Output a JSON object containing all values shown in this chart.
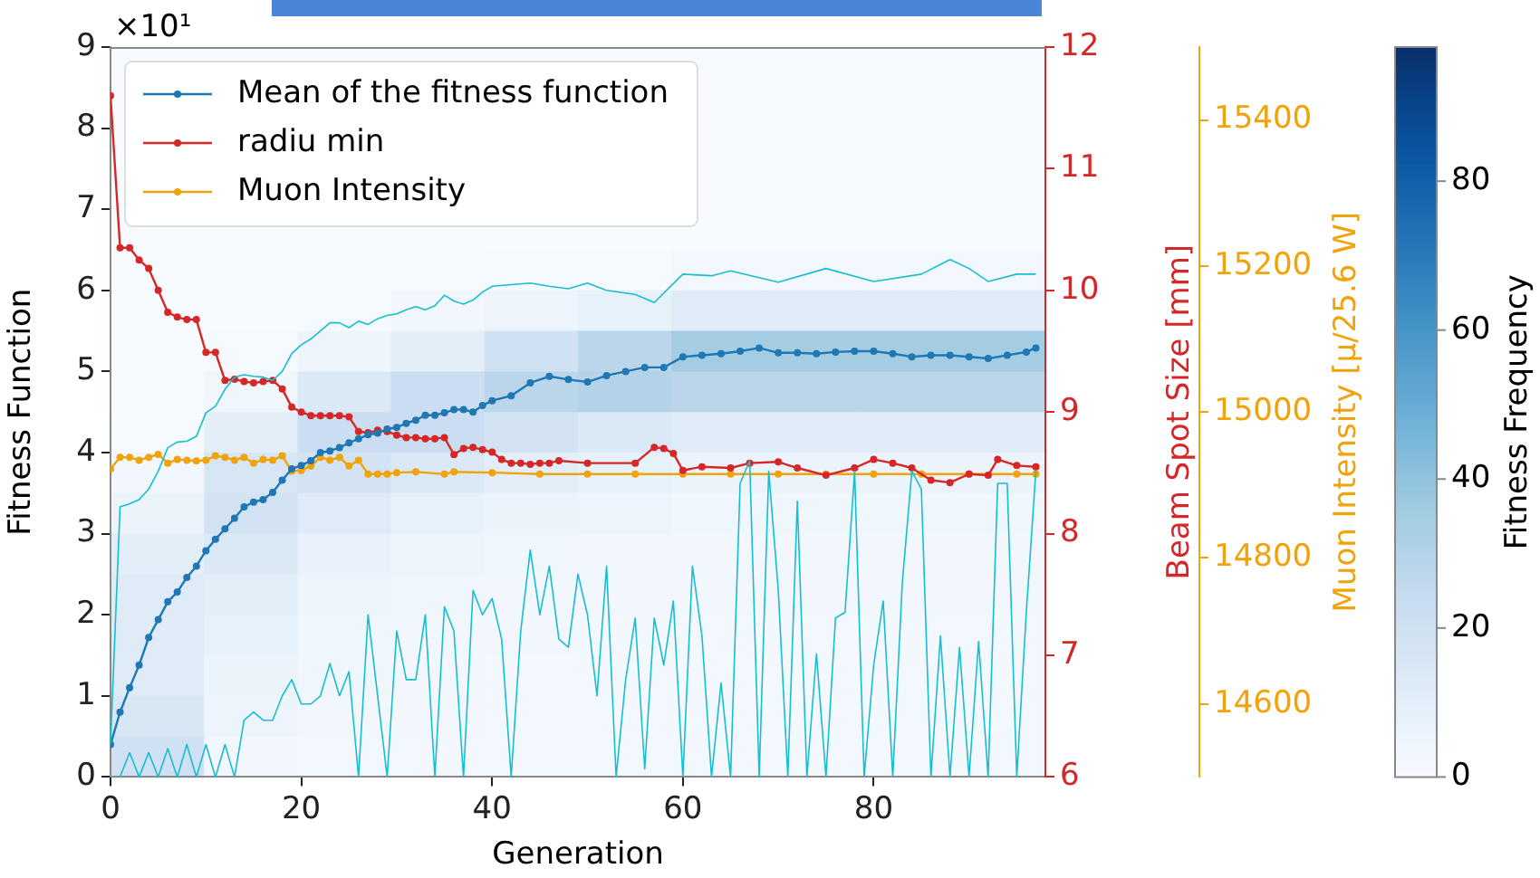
{
  "chart_data": [
    {
      "type": "heatmap",
      "clabel": "Fitness Frequency",
      "clim": [
        0,
        98
      ],
      "cticks": [
        0,
        20,
        40,
        60,
        80
      ],
      "categories": [
        null,
        null,
        null,
        null,
        null,
        null,
        null,
        null,
        null,
        null
      ],
      "y_categories": [
        null,
        null,
        null,
        null,
        null,
        null,
        null,
        null,
        null,
        null,
        null,
        null,
        null,
        null,
        null,
        null,
        null,
        null
      ],
      "cells": [
        [
          0,
          0,
          0,
          0,
          0,
          0,
          0,
          0,
          0,
          0
        ],
        [
          0,
          0,
          0,
          0,
          0,
          0,
          0,
          0,
          0,
          0
        ],
        [
          0,
          0,
          0,
          0,
          0,
          0,
          0,
          0,
          0,
          0
        ],
        [
          0,
          0,
          0,
          0,
          0,
          0,
          0,
          0,
          0,
          0
        ],
        [
          0,
          0,
          0,
          0,
          0,
          0,
          0,
          0,
          0,
          0
        ],
        [
          0,
          0,
          0,
          0,
          1,
          1,
          2,
          2,
          2,
          2
        ],
        [
          0,
          0,
          1,
          3,
          5,
          8,
          12,
          12,
          12,
          12
        ],
        [
          0,
          1,
          5,
          10,
          20,
          28,
          35,
          35,
          35,
          35
        ],
        [
          0,
          4,
          14,
          22,
          28,
          30,
          28,
          28,
          28,
          28
        ],
        [
          1,
          10,
          22,
          22,
          18,
          14,
          12,
          12,
          12,
          12
        ],
        [
          3,
          16,
          18,
          14,
          10,
          8,
          6,
          6,
          6,
          6
        ],
        [
          6,
          18,
          12,
          8,
          6,
          5,
          4,
          4,
          4,
          4
        ],
        [
          10,
          14,
          7,
          5,
          4,
          3,
          3,
          3,
          3,
          3
        ],
        [
          12,
          10,
          5,
          4,
          3,
          3,
          3,
          3,
          3,
          3
        ],
        [
          12,
          8,
          4,
          3,
          3,
          2,
          2,
          2,
          2,
          2
        ],
        [
          12,
          6,
          4,
          3,
          2,
          2,
          2,
          2,
          2,
          2
        ],
        [
          15,
          5,
          3,
          3,
          2,
          2,
          2,
          2,
          2,
          2
        ],
        [
          20,
          3,
          2,
          2,
          2,
          2,
          2,
          2,
          2,
          2
        ]
      ]
    },
    {
      "type": "line",
      "xlabel": "Generation",
      "ylabel": "Fitness Function",
      "y2label": "Beam Spot Size [mm]",
      "y3label": "Muon Intensity [μ/25.6 W]",
      "annotations": [
        "×10¹"
      ],
      "xlim": [
        0,
        98
      ],
      "xticks": [
        0,
        20,
        40,
        60,
        80
      ],
      "ylim": [
        0,
        9
      ],
      "yticks": [
        0,
        1,
        2,
        3,
        4,
        5,
        6,
        7,
        8,
        9
      ],
      "y2lim": [
        6,
        12
      ],
      "y2ticks": [
        6,
        7,
        8,
        9,
        10,
        11,
        12
      ],
      "y3lim": [
        14500,
        15500
      ],
      "y3ticks": [
        14600,
        14800,
        15000,
        15200,
        15400
      ],
      "grid": false,
      "legend": "top left",
      "marker": "circle",
      "series": [
        {
          "color": "#17becf",
          "marker": "none",
          "x": [
            0,
            1,
            2,
            3,
            4,
            5,
            6,
            7,
            8,
            9,
            10,
            11,
            12,
            13,
            14,
            15,
            16,
            17,
            18,
            19,
            20,
            21,
            22,
            23,
            24,
            25,
            26,
            27,
            28,
            29,
            30,
            31,
            32,
            33,
            34,
            35,
            36,
            37,
            38,
            39,
            40,
            42,
            44,
            46,
            48,
            50,
            52,
            55,
            57,
            60,
            63,
            65,
            70,
            75,
            80,
            85,
            88,
            90,
            92,
            95,
            97
          ],
          "values": [
            0.4,
            3.33,
            3.37,
            3.42,
            3.55,
            3.77,
            4.06,
            4.13,
            4.14,
            4.2,
            4.49,
            4.57,
            4.78,
            4.93,
            4.96,
            4.94,
            4.93,
            4.89,
            5,
            5.22,
            5.33,
            5.4,
            5.5,
            5.6,
            5.6,
            5.54,
            5.62,
            5.58,
            5.65,
            5.69,
            5.71,
            5.76,
            5.8,
            5.76,
            5.81,
            5.94,
            5.87,
            5.83,
            5.88,
            5.98,
            6.05,
            6.07,
            6.09,
            6.05,
            6.02,
            6.09,
            6,
            5.95,
            5.85,
            6.2,
            6.18,
            6.24,
            6.1,
            6.27,
            6.11,
            6.2,
            6.38,
            6.27,
            6.11,
            6.2,
            6.2
          ]
        },
        {
          "color": "#17becf",
          "marker": "none",
          "x": [
            1,
            2,
            3,
            4,
            5,
            6,
            7,
            8,
            9,
            10,
            11,
            12,
            13,
            14,
            15,
            16,
            17,
            18,
            19,
            20,
            21,
            22,
            23,
            24,
            25,
            26,
            27,
            28,
            29,
            30,
            31,
            32,
            33,
            34,
            35,
            36,
            37,
            38,
            39,
            40,
            41,
            42,
            43,
            44,
            45,
            46,
            47,
            48,
            49,
            50,
            51,
            52,
            53,
            54,
            55,
            56,
            57,
            58,
            59,
            60,
            61,
            62,
            63,
            64,
            65,
            66,
            67,
            68,
            69,
            70,
            71,
            72,
            73,
            74,
            75,
            76,
            77,
            78,
            79,
            80,
            81,
            82,
            83,
            84,
            85,
            86,
            87,
            88,
            89,
            90,
            91,
            92,
            93,
            94,
            95,
            96,
            97
          ],
          "values": [
            0,
            0.3,
            0,
            0.3,
            0,
            0.35,
            0,
            0.4,
            0,
            0.4,
            0,
            0.4,
            0,
            0.7,
            0.8,
            0.7,
            0.7,
            1,
            1.2,
            0.9,
            0.9,
            1,
            1.4,
            1,
            1.3,
            0,
            2,
            1,
            0,
            1.8,
            1.2,
            1.2,
            2,
            0,
            2.1,
            1.8,
            0,
            2.3,
            2,
            2.2,
            1.7,
            0,
            1.8,
            2.8,
            2,
            2.6,
            1.7,
            1.6,
            2.5,
            2,
            1,
            2.6,
            0,
            1.2,
            1.96,
            0.1,
            1.96,
            1.38,
            2.17,
            0,
            2.6,
            1.74,
            0,
            1.16,
            0,
            3.62,
            3.9,
            0,
            3.77,
            2.3,
            0,
            3.4,
            0,
            1.52,
            0,
            1.96,
            2.03,
            3.77,
            0,
            1.38,
            2.17,
            0,
            2.39,
            3.77,
            3.55,
            0,
            1.74,
            0,
            1.6,
            0,
            1.67,
            0,
            3.62,
            3.62,
            0,
            2.03,
            3.77
          ]
        },
        {
          "name": "Mean of the fitness function",
          "color": "#1f77b4",
          "x": [
            0,
            1,
            2,
            3,
            4,
            5,
            6,
            7,
            8,
            9,
            10,
            11,
            12,
            13,
            14,
            15,
            16,
            17,
            18,
            19,
            20,
            21,
            22,
            23,
            24,
            25,
            26,
            27,
            28,
            29,
            30,
            31,
            32,
            33,
            34,
            35,
            36,
            37,
            38,
            39,
            40,
            42,
            44,
            46,
            48,
            50,
            52,
            54,
            56,
            58,
            60,
            62,
            64,
            66,
            68,
            70,
            72,
            74,
            76,
            78,
            80,
            82,
            84,
            86,
            88,
            90,
            92,
            94,
            96,
            97
          ],
          "values": [
            0.4,
            0.8,
            1.1,
            1.38,
            1.72,
            1.94,
            2.16,
            2.28,
            2.46,
            2.6,
            2.79,
            2.93,
            3.06,
            3.19,
            3.33,
            3.39,
            3.42,
            3.51,
            3.66,
            3.8,
            3.84,
            3.9,
            4,
            4.02,
            4.06,
            4.12,
            4.17,
            4.22,
            4.24,
            4.29,
            4.31,
            4.36,
            4.4,
            4.46,
            4.46,
            4.49,
            4.53,
            4.53,
            4.5,
            4.58,
            4.64,
            4.7,
            4.86,
            4.94,
            4.9,
            4.87,
            4.95,
            5,
            5.05,
            5.05,
            5.18,
            5.2,
            5.22,
            5.25,
            5.29,
            5.23,
            5.23,
            5.22,
            5.24,
            5.25,
            5.25,
            5.22,
            5.18,
            5.2,
            5.2,
            5.18,
            5.16,
            5.2,
            5.24,
            5.29
          ]
        },
        {
          "name": "radiu min",
          "color": "#d62728",
          "axis": "y2",
          "x": [
            0,
            1,
            2,
            3,
            4,
            5,
            6,
            7,
            8,
            9,
            10,
            11,
            12,
            13,
            14,
            15,
            16,
            17,
            18,
            19,
            20,
            21,
            22,
            23,
            24,
            25,
            26,
            27,
            28,
            29,
            30,
            31,
            32,
            33,
            34,
            35,
            36,
            37,
            38,
            39,
            40,
            41,
            42,
            43,
            44,
            45,
            46,
            47,
            50,
            55,
            57,
            58,
            59,
            60,
            62,
            65,
            67,
            70,
            72,
            75,
            78,
            80,
            82,
            84,
            86,
            88,
            90,
            92,
            93,
            95,
            97
          ],
          "values": [
            11.6,
            10.35,
            10.35,
            10.25,
            10.18,
            10,
            9.82,
            9.78,
            9.76,
            9.76,
            9.49,
            9.49,
            9.26,
            9.27,
            9.25,
            9.24,
            9.25,
            9.26,
            9.19,
            9.04,
            9,
            8.97,
            8.97,
            8.97,
            8.97,
            8.96,
            8.84,
            8.83,
            8.85,
            8.84,
            8.81,
            8.79,
            8.79,
            8.78,
            8.78,
            8.79,
            8.65,
            8.7,
            8.71,
            8.69,
            8.67,
            8.61,
            8.58,
            8.58,
            8.57,
            8.58,
            8.58,
            8.6,
            8.58,
            8.58,
            8.71,
            8.7,
            8.66,
            8.52,
            8.55,
            8.54,
            8.58,
            8.59,
            8.54,
            8.48,
            8.54,
            8.61,
            8.58,
            8.54,
            8.44,
            8.42,
            8.49,
            8.48,
            8.61,
            8.56,
            8.55
          ]
        },
        {
          "name": "Muon Intensity",
          "color": "#f0a30a",
          "axis": "y3",
          "x": [
            0,
            1,
            2,
            3,
            4,
            5,
            6,
            7,
            8,
            9,
            10,
            11,
            12,
            13,
            14,
            15,
            16,
            17,
            18,
            19,
            20,
            21,
            22,
            23,
            24,
            25,
            26,
            27,
            28,
            29,
            30,
            32,
            35,
            36,
            40,
            45,
            50,
            55,
            60,
            65,
            70,
            75,
            80,
            85,
            90,
            95,
            97
          ],
          "values": [
            14922,
            14938,
            14938,
            14934,
            14938,
            14942,
            14930,
            14935,
            14934,
            14933,
            14934,
            14940,
            14938,
            14934,
            14938,
            14930,
            14935,
            14934,
            14940,
            14919,
            14920,
            14926,
            14938,
            14934,
            14938,
            14926,
            14934,
            14915,
            14915,
            14915,
            14917,
            14918,
            14915,
            14918,
            14917,
            14915,
            14915,
            14915,
            14915,
            14915,
            14915,
            14915,
            14915,
            14915,
            14915,
            14915,
            14915
          ]
        }
      ]
    }
  ]
}
